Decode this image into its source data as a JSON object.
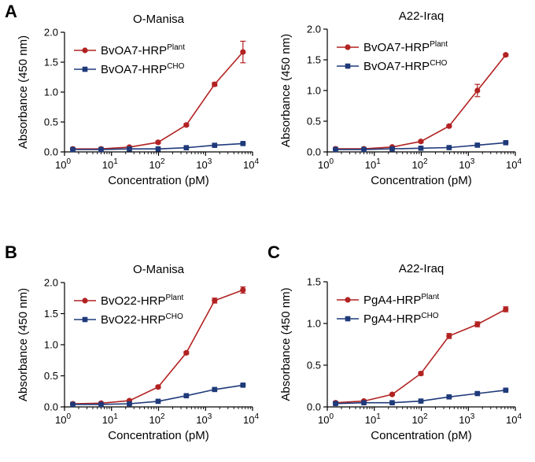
{
  "colors": {
    "plant": "#b22222",
    "cho": "#1f3a7a",
    "axis": "#000000"
  },
  "panel_letters": [
    "A",
    "B",
    "C"
  ],
  "chart_data": [
    {
      "type": "line",
      "title": "O-Manisa",
      "xlabel": "Concentration (pM)",
      "ylabel": "Absorbance (450 nm)",
      "xscale": "log",
      "xlim": [
        1,
        10000
      ],
      "ylim": [
        0,
        2.0
      ],
      "yticks": [
        0.0,
        0.5,
        1.0,
        1.5,
        2.0
      ],
      "ytick_labels": [
        "0.0",
        "0.5",
        "1.0",
        "1.5",
        "2.0"
      ],
      "xtick_exponents": [
        "0",
        "1",
        "2",
        "3",
        "4"
      ],
      "legend_position": "top-left",
      "x": [
        1.5,
        6,
        24,
        98,
        390,
        1560,
        6250
      ],
      "series": [
        {
          "name": "BvOA7-HRP",
          "superscript": "Plant",
          "values": [
            0.05,
            0.05,
            0.08,
            0.16,
            0.45,
            1.13,
            1.67
          ],
          "errors": [
            0.01,
            0.01,
            0.01,
            0.02,
            0.02,
            0.03,
            0.18
          ]
        },
        {
          "name": "BvOA7-HRP",
          "superscript": "CHO",
          "values": [
            0.04,
            0.04,
            0.05,
            0.05,
            0.07,
            0.11,
            0.14
          ],
          "errors": [
            0.005,
            0.005,
            0.005,
            0.005,
            0.005,
            0.01,
            0.01
          ]
        }
      ]
    },
    {
      "type": "line",
      "title": "A22-Iraq",
      "xlabel": "Concentration (pM)",
      "ylabel": "Absorbance (450 nm)",
      "xscale": "log",
      "xlim": [
        1,
        10000
      ],
      "ylim": [
        0,
        2.0
      ],
      "yticks": [
        0.0,
        0.5,
        1.0,
        1.5,
        2.0
      ],
      "ytick_labels": [
        "0.0",
        "0.5",
        "1.0",
        "1.5",
        "2.0"
      ],
      "xtick_exponents": [
        "0",
        "1",
        "2",
        "3",
        "4"
      ],
      "legend_position": "top-left",
      "x": [
        1.5,
        6,
        24,
        98,
        390,
        1560,
        6250
      ],
      "series": [
        {
          "name": "BvOA7-HRP",
          "superscript": "Plant",
          "values": [
            0.05,
            0.05,
            0.08,
            0.17,
            0.42,
            1.0,
            1.58
          ],
          "errors": [
            0.01,
            0.01,
            0.01,
            0.02,
            0.02,
            0.1,
            0.02
          ]
        },
        {
          "name": "BvOA7-HRP",
          "superscript": "CHO",
          "values": [
            0.04,
            0.04,
            0.05,
            0.06,
            0.07,
            0.11,
            0.15
          ],
          "errors": [
            0.005,
            0.005,
            0.005,
            0.005,
            0.005,
            0.01,
            0.01
          ]
        }
      ]
    },
    {
      "type": "line",
      "title": "O-Manisa",
      "xlabel": "Concentration (pM)",
      "ylabel": "Absorbance (450 nm)",
      "xscale": "log",
      "xlim": [
        1,
        10000
      ],
      "ylim": [
        0,
        2.0
      ],
      "yticks": [
        0.0,
        0.5,
        1.0,
        1.5,
        2.0
      ],
      "ytick_labels": [
        "0.0",
        "0.5",
        "1.0",
        "1.5",
        "2.0"
      ],
      "xtick_exponents": [
        "0",
        "1",
        "2",
        "3",
        "4"
      ],
      "legend_position": "top-left",
      "x": [
        1.5,
        6,
        24,
        98,
        390,
        1560,
        6250
      ],
      "series": [
        {
          "name": "BvO22-HRP",
          "superscript": "Plant",
          "values": [
            0.05,
            0.06,
            0.1,
            0.32,
            0.87,
            1.71,
            1.88
          ],
          "errors": [
            0.01,
            0.01,
            0.01,
            0.02,
            0.02,
            0.04,
            0.05
          ]
        },
        {
          "name": "BvO22-HRP",
          "superscript": "CHO",
          "values": [
            0.04,
            0.04,
            0.05,
            0.09,
            0.18,
            0.28,
            0.35
          ],
          "errors": [
            0.005,
            0.005,
            0.005,
            0.01,
            0.01,
            0.01,
            0.01
          ]
        }
      ]
    },
    {
      "type": "line",
      "title": "A22-Iraq",
      "xlabel": "Concentration (pM)",
      "ylabel": "Absorbance (450 nm)",
      "xscale": "log",
      "xlim": [
        1,
        10000
      ],
      "ylim": [
        0,
        1.5
      ],
      "yticks": [
        0.0,
        0.5,
        1.0,
        1.5
      ],
      "ytick_labels": [
        "0.0",
        "0.5",
        "1.0",
        "1.5"
      ],
      "xtick_exponents": [
        "0",
        "1",
        "2",
        "3",
        "4"
      ],
      "legend_position": "top-left",
      "x": [
        1.5,
        6,
        24,
        98,
        390,
        1560,
        6250
      ],
      "series": [
        {
          "name": "PgA4-HRP",
          "superscript": "Plant",
          "values": [
            0.05,
            0.07,
            0.15,
            0.4,
            0.85,
            0.99,
            1.17
          ],
          "errors": [
            0.01,
            0.01,
            0.01,
            0.02,
            0.03,
            0.03,
            0.03
          ]
        },
        {
          "name": "PgA4-HRP",
          "superscript": "CHO",
          "values": [
            0.04,
            0.05,
            0.05,
            0.07,
            0.12,
            0.16,
            0.2
          ],
          "errors": [
            0.005,
            0.005,
            0.005,
            0.005,
            0.01,
            0.01,
            0.01
          ]
        }
      ]
    }
  ]
}
